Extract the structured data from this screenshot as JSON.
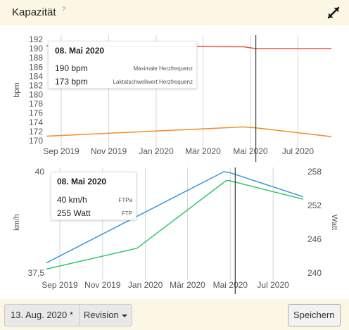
{
  "header": {
    "title": "Kapazität",
    "help_icon": "?",
    "expand_icon": "expand-arrows-icon"
  },
  "chart_data": [
    {
      "type": "line",
      "title": "",
      "ylabel": "bpm",
      "x_ticks": [
        "Sep 2019",
        "Nov 2019",
        "Jan 2020",
        "Mär 2020",
        "Mai 2020",
        "Jul 2020"
      ],
      "x_range": [
        "2019-08-13",
        "2020-08-13"
      ],
      "y_ticks": [
        170,
        172,
        174,
        176,
        178,
        180,
        182,
        184,
        186,
        188,
        190,
        192
      ],
      "ylim": [
        170,
        192
      ],
      "grid": true,
      "cursor_date": "2020-05-08",
      "series": [
        {
          "name": "Maximale Herzfrequenz",
          "color": "#e8553e",
          "points": [
            [
              "2019-08-13",
              190.6
            ],
            [
              "2020-04-22",
              190.4
            ],
            [
              "2020-05-08",
              190.0
            ],
            [
              "2020-07-20",
              190.0
            ],
            [
              "2020-08-13",
              190.0
            ]
          ]
        },
        {
          "name": "Laktatschwellwert Herzfrequenz",
          "color": "#f58a28",
          "points": [
            [
              "2019-08-13",
              171.0
            ],
            [
              "2020-04-22",
              173.0
            ],
            [
              "2020-05-08",
              172.8
            ],
            [
              "2020-08-13",
              170.9
            ]
          ]
        }
      ],
      "tooltip": {
        "date": "08. Mai 2020",
        "rows": [
          {
            "value": "190 bpm",
            "label": "Maximale Herzfrequenz"
          },
          {
            "value": "173 bpm",
            "label": "Laktatschwellwert Herzfrequenz"
          }
        ]
      }
    },
    {
      "type": "line",
      "title": "",
      "ylabel": "km/h",
      "ylabel_right": "Watt",
      "x_ticks": [
        "Sep 2019",
        "Nov 2019",
        "Jan 2020",
        "Mär 2020",
        "Mai 2020",
        "Jul 2020"
      ],
      "x_range": [
        "2019-08-13",
        "2020-08-13"
      ],
      "y_ticks": [
        "40",
        "37,5"
      ],
      "ylim": [
        37.5,
        40
      ],
      "y_right_ticks": [
        240,
        246,
        252,
        258
      ],
      "ylim_right": [
        240,
        258
      ],
      "grid": true,
      "cursor_date": "2020-05-08",
      "series": [
        {
          "name": "FTPa",
          "axis": "left",
          "color": "#3b9ad9",
          "points": [
            [
              "2019-08-13",
              37.75
            ],
            [
              "2020-04-22",
              40.0
            ],
            [
              "2020-04-30",
              39.98
            ],
            [
              "2020-08-13",
              39.38
            ]
          ]
        },
        {
          "name": "FTP",
          "axis": "right",
          "color": "#2ec66b",
          "points": [
            [
              "2019-08-13",
              240.7
            ],
            [
              "2019-12-20",
              244.4
            ],
            [
              "2020-04-25",
              256.4
            ],
            [
              "2020-04-30",
              256.4
            ],
            [
              "2020-08-13",
              253.1
            ]
          ]
        }
      ],
      "tooltip": {
        "date": "08. Mai 2020",
        "rows": [
          {
            "value": "40 km/h",
            "label": "FTPa"
          },
          {
            "value": "255 Watt",
            "label": "FTP"
          }
        ]
      }
    }
  ],
  "footer": {
    "date_button": "13. Aug. 2020 *",
    "revision_button": "Revision",
    "save_button": "Speichern"
  }
}
